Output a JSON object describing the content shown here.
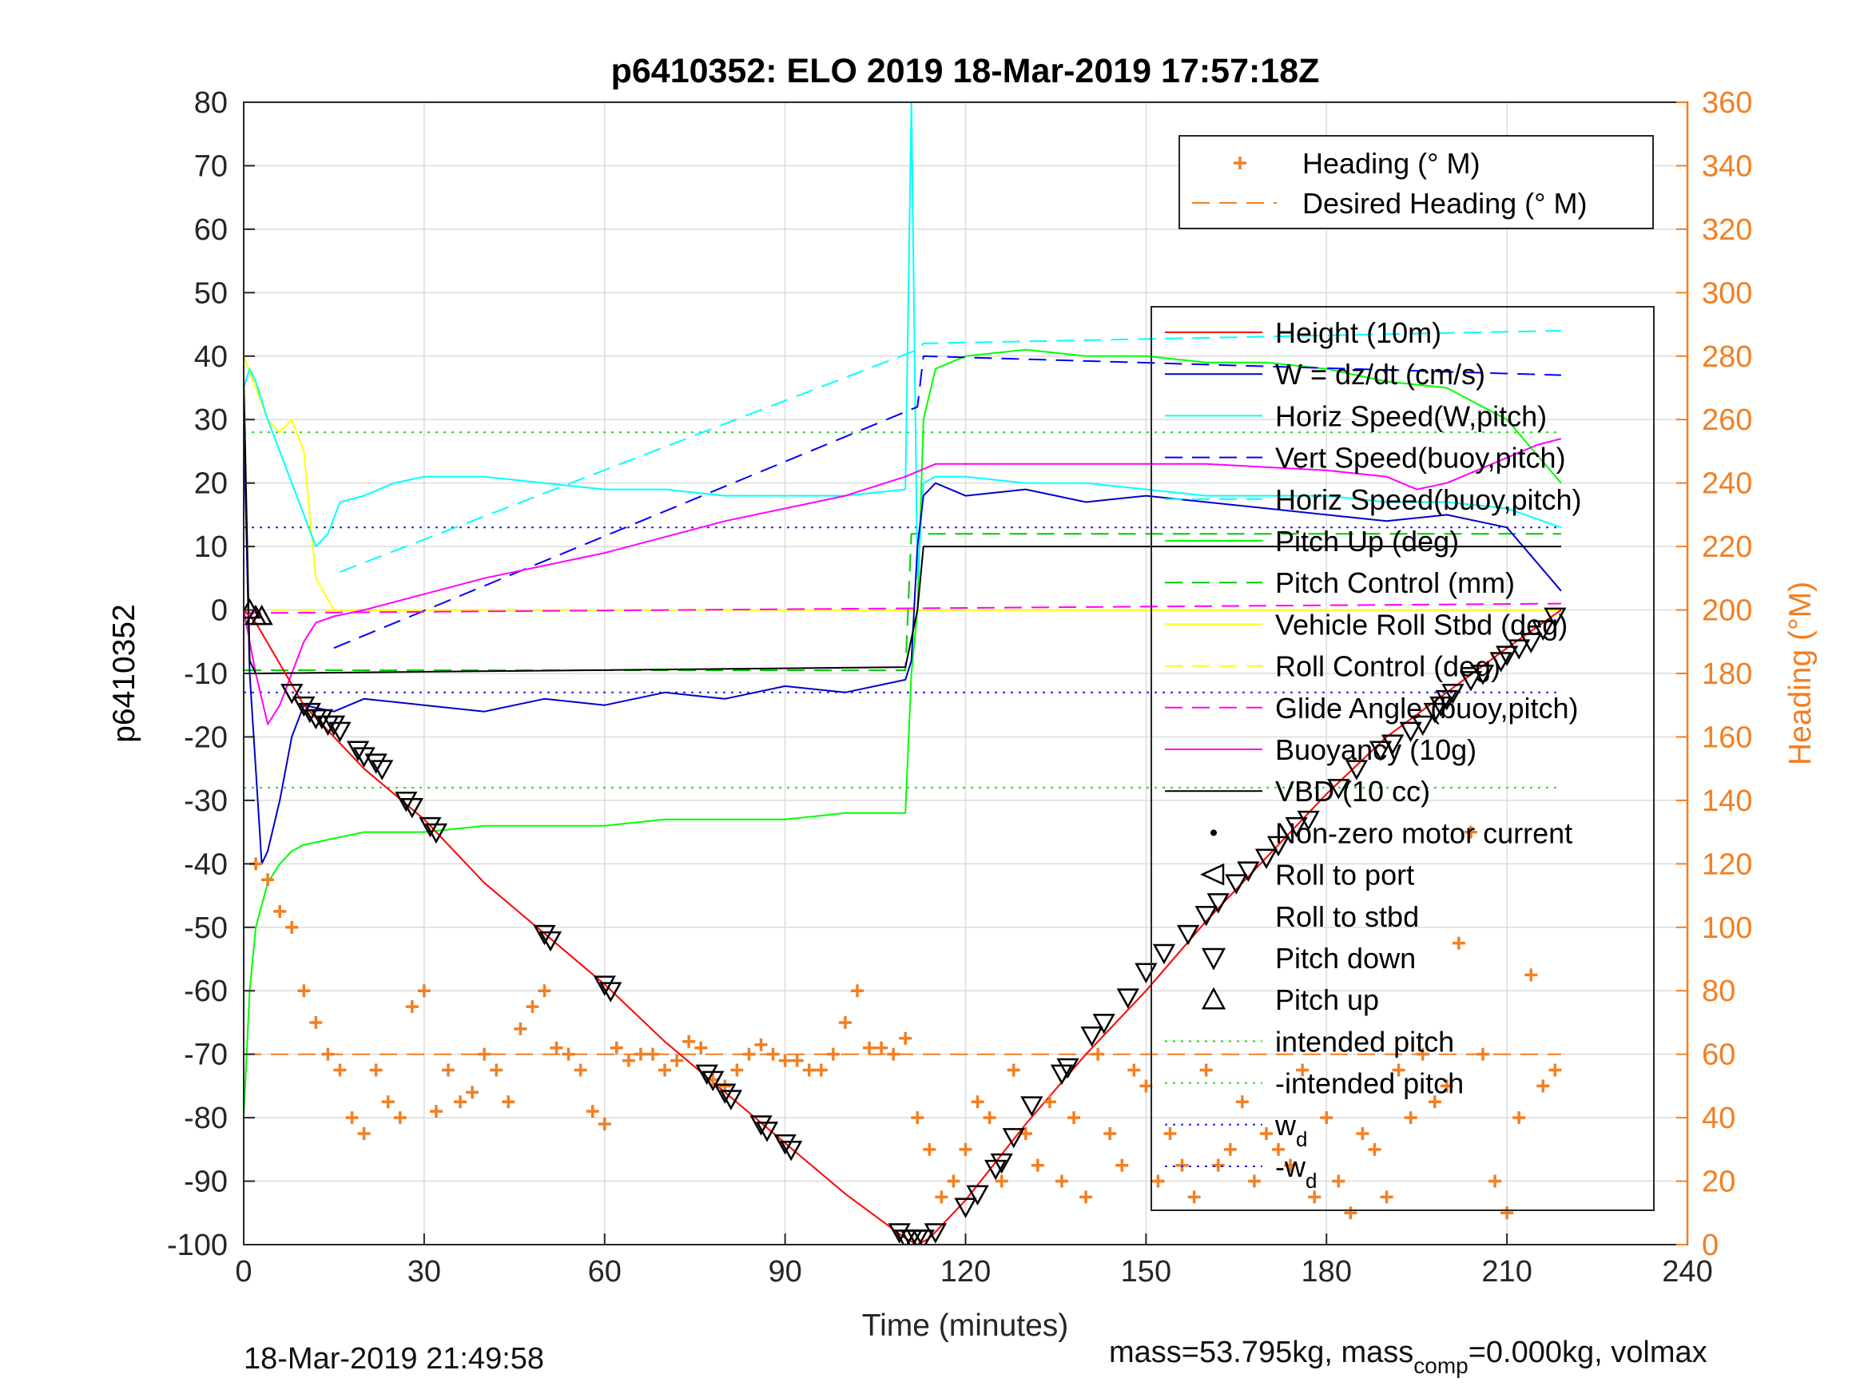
{
  "chart_data": {
    "type": "line",
    "title": "p6410352: ELO 2019 18-Mar-2019 17:57:18Z",
    "xlabel": "Time (minutes)",
    "ylabel_left": "p6410352",
    "ylabel_right": "Heading (°M)",
    "xlim": [
      0,
      240
    ],
    "ylim_left": [
      -100,
      80
    ],
    "ylim_right": [
      0,
      360
    ],
    "xticks": [
      "0",
      "30",
      "60",
      "90",
      "120",
      "150",
      "180",
      "210",
      "240"
    ],
    "yticks_left": [
      "80",
      "70",
      "60",
      "50",
      "40",
      "30",
      "20",
      "10",
      "0",
      "-10",
      "-20",
      "-30",
      "-40",
      "-50",
      "-60",
      "-70",
      "-80",
      "-90",
      "-100"
    ],
    "yticks_right": [
      "360",
      "340",
      "320",
      "300",
      "280",
      "260",
      "240",
      "220",
      "200",
      "180",
      "160",
      "140",
      "120",
      "100",
      "80",
      "60",
      "40",
      "20",
      "0"
    ],
    "grid": true,
    "legend_heading_entries": [
      "Heading (° M)",
      "Desired Heading (° M)"
    ],
    "legend_main_entries": [
      "Height (10m)",
      "W = dz/dt (cm/s)",
      "Horiz Speed(W,pitch)",
      "Vert Speed(buoy,pitch)",
      "Horiz Speed(buoy,pitch)",
      "Pitch Up (deg)",
      "Pitch Control (mm)",
      "Vehicle Roll Stbd (deg)",
      "Roll Control (deg)",
      "Glide Angle (buoy,pitch)",
      "Buoyancy (10g)",
      "VBD (10 cc)",
      "Non-zero motor current",
      "Roll to port",
      "Roll to stbd",
      "Pitch down",
      "Pitch up",
      "intended pitch",
      "-intended pitch"
    ],
    "legend_wd_label": "w",
    "legend_wd_sub": "d",
    "legend_neg_wd_label": "-w",
    "legend_neg_wd_sub": "d",
    "colors": {
      "height": "#ff0000",
      "w": "#0000cc",
      "horiz_w": "#00ffff",
      "vert_buoy": "#0000ff",
      "horiz_buoy": "#00ffff",
      "pitch": "#00ff00",
      "pitch_control": "#00cc00",
      "roll": "#ffff00",
      "roll_control": "#ffff00",
      "glide": "#ff00ff",
      "buoyancy": "#ff00ff",
      "vbd": "#000000",
      "heading": "#f27f22",
      "intended_pitch": "#22dd22",
      "wd": "#2222ee"
    },
    "series": [
      {
        "name": "Height (10m)",
        "x": [
          0,
          2,
          10,
          20,
          30,
          40,
          50,
          60,
          70,
          80,
          90,
          100,
          110,
          112,
          114,
          120,
          130,
          140,
          150,
          160,
          170,
          180,
          190,
          200,
          210,
          219
        ],
        "y": [
          0,
          -2,
          -15,
          -25,
          -33,
          -43,
          -51,
          -59,
          -68,
          -76,
          -84,
          -92,
          -99,
          -100,
          -99,
          -93,
          -81,
          -70,
          -60,
          -49,
          -39,
          -29,
          -20,
          -13,
          -6,
          0
        ]
      },
      {
        "name": "W = dz/dt (cm/s)",
        "x": [
          0,
          1,
          2,
          3,
          4,
          6,
          8,
          10,
          15,
          20,
          30,
          40,
          50,
          60,
          70,
          80,
          90,
          100,
          110,
          111,
          112,
          113,
          115,
          120,
          130,
          140,
          150,
          160,
          170,
          180,
          190,
          200,
          210,
          219
        ],
        "y": [
          30,
          -10,
          -25,
          -40,
          -38,
          -30,
          -20,
          -15,
          -16,
          -14,
          -15,
          -16,
          -14,
          -15,
          -13,
          -14,
          -12,
          -13,
          -11,
          -8,
          10,
          18,
          20,
          18,
          19,
          17,
          18,
          17,
          16,
          15,
          14,
          15,
          13,
          3
        ]
      },
      {
        "name": "Horiz Speed(W,pitch)",
        "x": [
          0,
          1,
          2,
          4,
          6,
          8,
          10,
          12,
          14,
          16,
          20,
          25,
          30,
          40,
          50,
          60,
          70,
          80,
          90,
          100,
          110,
          111,
          112,
          113,
          115,
          120,
          130,
          140,
          150,
          160,
          170,
          180,
          190,
          200,
          210,
          219
        ],
        "y": [
          35,
          38,
          36,
          30,
          25,
          20,
          15,
          10,
          12,
          17,
          18,
          20,
          21,
          21,
          20,
          19,
          19,
          18,
          18,
          18,
          19,
          80,
          5,
          20,
          21,
          21,
          20,
          20,
          19,
          18,
          18,
          18,
          17,
          17,
          16,
          13
        ]
      },
      {
        "name": "Vert Speed(buoy,pitch)",
        "x": [
          15,
          112,
          113,
          219
        ],
        "y": [
          -6,
          32,
          40,
          37
        ]
      },
      {
        "name": "Horiz Speed(buoy,pitch)",
        "x": [
          16,
          112,
          113,
          219
        ],
        "y": [
          6,
          41,
          42,
          44
        ]
      },
      {
        "name": "Pitch Up (deg)",
        "x": [
          0,
          1,
          2,
          4,
          6,
          8,
          10,
          15,
          20,
          30,
          40,
          50,
          60,
          70,
          80,
          90,
          100,
          110,
          111,
          112,
          113,
          115,
          120,
          130,
          140,
          150,
          160,
          170,
          180,
          190,
          200,
          210,
          219
        ],
        "y": [
          -80,
          -60,
          -50,
          -43,
          -40,
          -38,
          -37,
          -36,
          -35,
          -35,
          -34,
          -34,
          -34,
          -33,
          -33,
          -33,
          -32,
          -32,
          -10,
          0,
          30,
          38,
          40,
          41,
          40,
          40,
          39,
          39,
          38,
          36,
          35,
          30,
          20
        ]
      },
      {
        "name": "Pitch Control (mm)",
        "x": [
          0,
          110,
          111,
          219
        ],
        "y": [
          -9.5,
          -9.5,
          12,
          12
        ]
      },
      {
        "name": "Vehicle Roll Stbd (deg)",
        "x": [
          0,
          2,
          4,
          6,
          8,
          10,
          12,
          15,
          20,
          30,
          40,
          50,
          60,
          70,
          80,
          90,
          100,
          110,
          112,
          115,
          120,
          130,
          140,
          150,
          160,
          170,
          180,
          190,
          200,
          210,
          219
        ],
        "y": [
          40,
          35,
          30,
          28,
          30,
          25,
          5,
          0,
          0,
          0,
          0,
          0,
          0,
          0,
          0,
          0,
          0,
          0,
          0,
          0,
          0,
          0,
          0,
          0,
          0,
          0,
          0,
          0,
          0,
          0,
          0
        ]
      },
      {
        "name": "Roll Control (deg)",
        "x": [
          0,
          219
        ],
        "y": [
          0,
          0
        ]
      },
      {
        "name": "Glide Angle (buoy,pitch)",
        "x": [
          0,
          219
        ],
        "y": [
          -0.5,
          1
        ]
      },
      {
        "name": "Buoyancy (10g)",
        "x": [
          0,
          1,
          2,
          4,
          6,
          8,
          10,
          12,
          15,
          20,
          40,
          60,
          80,
          100,
          110,
          115,
          125,
          140,
          160,
          180,
          190,
          195,
          200,
          205,
          210,
          215,
          219
        ],
        "y": [
          0,
          -5,
          -10,
          -18,
          -15,
          -10,
          -5,
          -2,
          -1,
          0,
          5,
          9,
          14,
          18,
          21,
          23,
          23,
          23,
          23,
          22,
          21,
          19,
          20,
          22,
          24,
          26,
          27
        ]
      },
      {
        "name": "VBD (10 cc)",
        "x": [
          0,
          1,
          2,
          110,
          112,
          113,
          219
        ],
        "y": [
          37,
          -8,
          -10,
          -9,
          0,
          10,
          10
        ]
      },
      {
        "name": "Heading (° M)",
        "x": [
          2,
          4,
          6,
          8,
          10,
          12,
          14,
          16,
          18,
          20,
          22,
          24,
          26,
          28,
          30,
          32,
          34,
          36,
          38,
          40,
          42,
          44,
          46,
          48,
          50,
          52,
          54,
          56,
          58,
          60,
          62,
          64,
          66,
          68,
          70,
          72,
          74,
          76,
          78,
          80,
          82,
          84,
          86,
          88,
          90,
          92,
          94,
          96,
          98,
          100,
          102,
          104,
          106,
          108,
          110,
          112,
          114,
          116,
          118,
          120,
          122,
          124,
          126,
          128,
          130,
          132,
          134,
          136,
          138,
          140,
          142,
          144,
          146,
          148,
          150,
          152,
          154,
          156,
          158,
          160,
          162,
          164,
          166,
          168,
          170,
          172,
          174,
          176,
          178,
          180,
          182,
          184,
          186,
          188,
          190,
          192,
          194,
          196,
          198,
          200,
          202,
          204,
          206,
          208,
          210,
          212,
          214,
          216,
          218
        ],
        "y": [
          120,
          115,
          105,
          100,
          80,
          70,
          60,
          55,
          40,
          35,
          55,
          45,
          40,
          75,
          80,
          42,
          55,
          45,
          48,
          60,
          55,
          45,
          68,
          75,
          80,
          62,
          60,
          55,
          42,
          38,
          62,
          58,
          60,
          60,
          55,
          58,
          64,
          62,
          52,
          50,
          55,
          60,
          63,
          60,
          58,
          58,
          55,
          55,
          60,
          70,
          80,
          62,
          62,
          60,
          65,
          40,
          30,
          15,
          20,
          30,
          45,
          40,
          20,
          55,
          35,
          25,
          45,
          20,
          40,
          15,
          60,
          35,
          25,
          55,
          50,
          20,
          35,
          25,
          15,
          55,
          25,
          30,
          45,
          20,
          35,
          30,
          25,
          55,
          15,
          40,
          20,
          10,
          35,
          30,
          15,
          55,
          40,
          60,
          45,
          50,
          95,
          130,
          60,
          20,
          10,
          40,
          85,
          50,
          55
        ]
      },
      {
        "name": "Desired Heading (° M)",
        "x": [
          0,
          219
        ],
        "y": [
          60,
          60
        ]
      },
      {
        "name": "intended pitch",
        "x": [
          0,
          219
        ],
        "y": [
          28,
          28
        ]
      },
      {
        "name": "-intended pitch",
        "x": [
          0,
          219
        ],
        "y": [
          -28,
          -28
        ]
      },
      {
        "name": "w",
        "x": [
          0,
          219
        ],
        "y": [
          13,
          13
        ]
      },
      {
        "name": "-w",
        "x": [
          0,
          219
        ],
        "y": [
          -13,
          -13
        ]
      }
    ],
    "pitch_down_markers": {
      "x": [
        8,
        10,
        11,
        12,
        13,
        14,
        15,
        16,
        19,
        20,
        22,
        23,
        27,
        28,
        31,
        32,
        50,
        51,
        60,
        61,
        77,
        78,
        80,
        81,
        86,
        87,
        90,
        91,
        109,
        110,
        111,
        112,
        113,
        115,
        120,
        122,
        125,
        126,
        128,
        131,
        136,
        137,
        141,
        143,
        147,
        150,
        153,
        157,
        160,
        162,
        165,
        167,
        170,
        172,
        175,
        177,
        182,
        185,
        189,
        191,
        194,
        196,
        198,
        199,
        200,
        201,
        204,
        206,
        209,
        210,
        212,
        214,
        216,
        218
      ],
      "y": [
        -13,
        -15,
        -16,
        -17,
        -17,
        -18,
        -18,
        -19,
        -22,
        -23,
        -24,
        -25,
        -30,
        -31,
        -34,
        -35,
        -51,
        -52,
        -59,
        -60,
        -73,
        -74,
        -76,
        -77,
        -81,
        -82,
        -84,
        -85,
        -98,
        -99,
        -99,
        -99,
        -99,
        -98,
        -94,
        -92,
        -88,
        -87,
        -83,
        -78,
        -73,
        -72,
        -67,
        -65,
        -61,
        -57,
        -54,
        -51,
        -48,
        -46,
        -43,
        -41,
        -39,
        -37,
        -34,
        -33,
        -28,
        -25,
        -22,
        -21,
        -19,
        -18,
        -16,
        -15,
        -14,
        -13,
        -11,
        -10,
        -8,
        -7,
        -6,
        -5,
        -3,
        -1
      ]
    },
    "pitch_up_markers": {
      "x": [
        1,
        2,
        3
      ],
      "y": [
        0,
        -1,
        -1
      ]
    },
    "footer_left": "18-Mar-2019 21:49:58",
    "footer_right_a": "mass=53.795kg, mass",
    "footer_right_sub": "comp",
    "footer_right_b": "=0.000kg, volmax"
  }
}
